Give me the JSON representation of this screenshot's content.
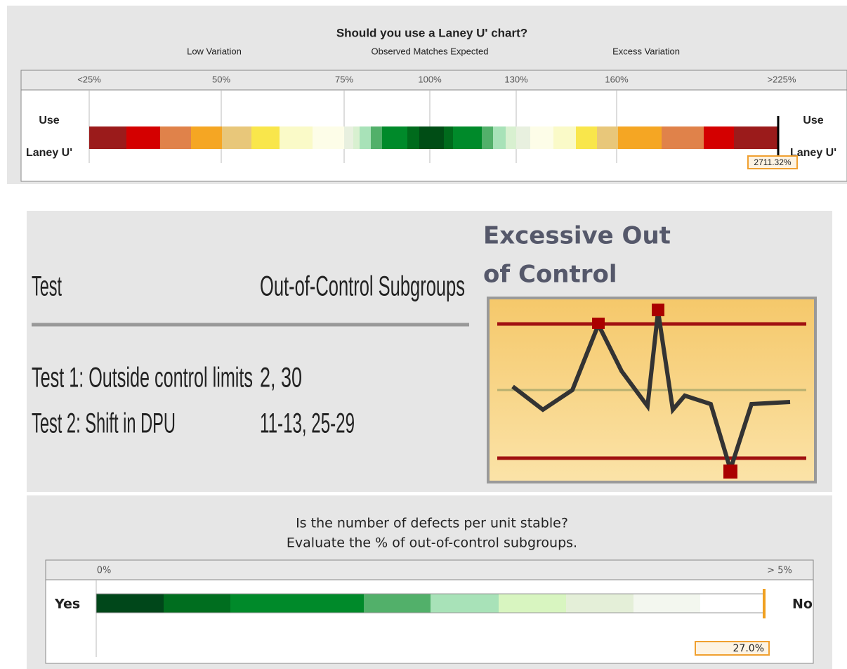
{
  "laney_panel": {
    "title": "Should you use a Laney U' chart?",
    "zones": [
      "Low Variation",
      "Observed Matches Expected",
      "Excess Variation"
    ],
    "ticks": [
      "<25%",
      "50%",
      "75%",
      "100%",
      "130%",
      "160%",
      ">225%"
    ],
    "left_label": [
      "Use",
      "Laney U'"
    ],
    "right_label": [
      "Use",
      "Laney U'"
    ],
    "marker_label": "2711.32%"
  },
  "table": {
    "header": [
      "Test",
      "Out-of-Control Subgroups"
    ],
    "rows": [
      [
        "Test 1: Outside control limits",
        "2, 30"
      ],
      [
        "Test 2: Shift in DPU",
        "11-13, 25-29"
      ]
    ]
  },
  "icon": {
    "title": [
      "Excessive Out",
      "of Control"
    ]
  },
  "stability_panel": {
    "title": [
      "Is the number of defects per unit stable?",
      "Evaluate the % of out-of-control subgroups."
    ],
    "ticks": [
      "0%",
      "> 5%"
    ],
    "left_label": "Yes",
    "right_label": "No",
    "marker_label": "27.0%"
  }
}
